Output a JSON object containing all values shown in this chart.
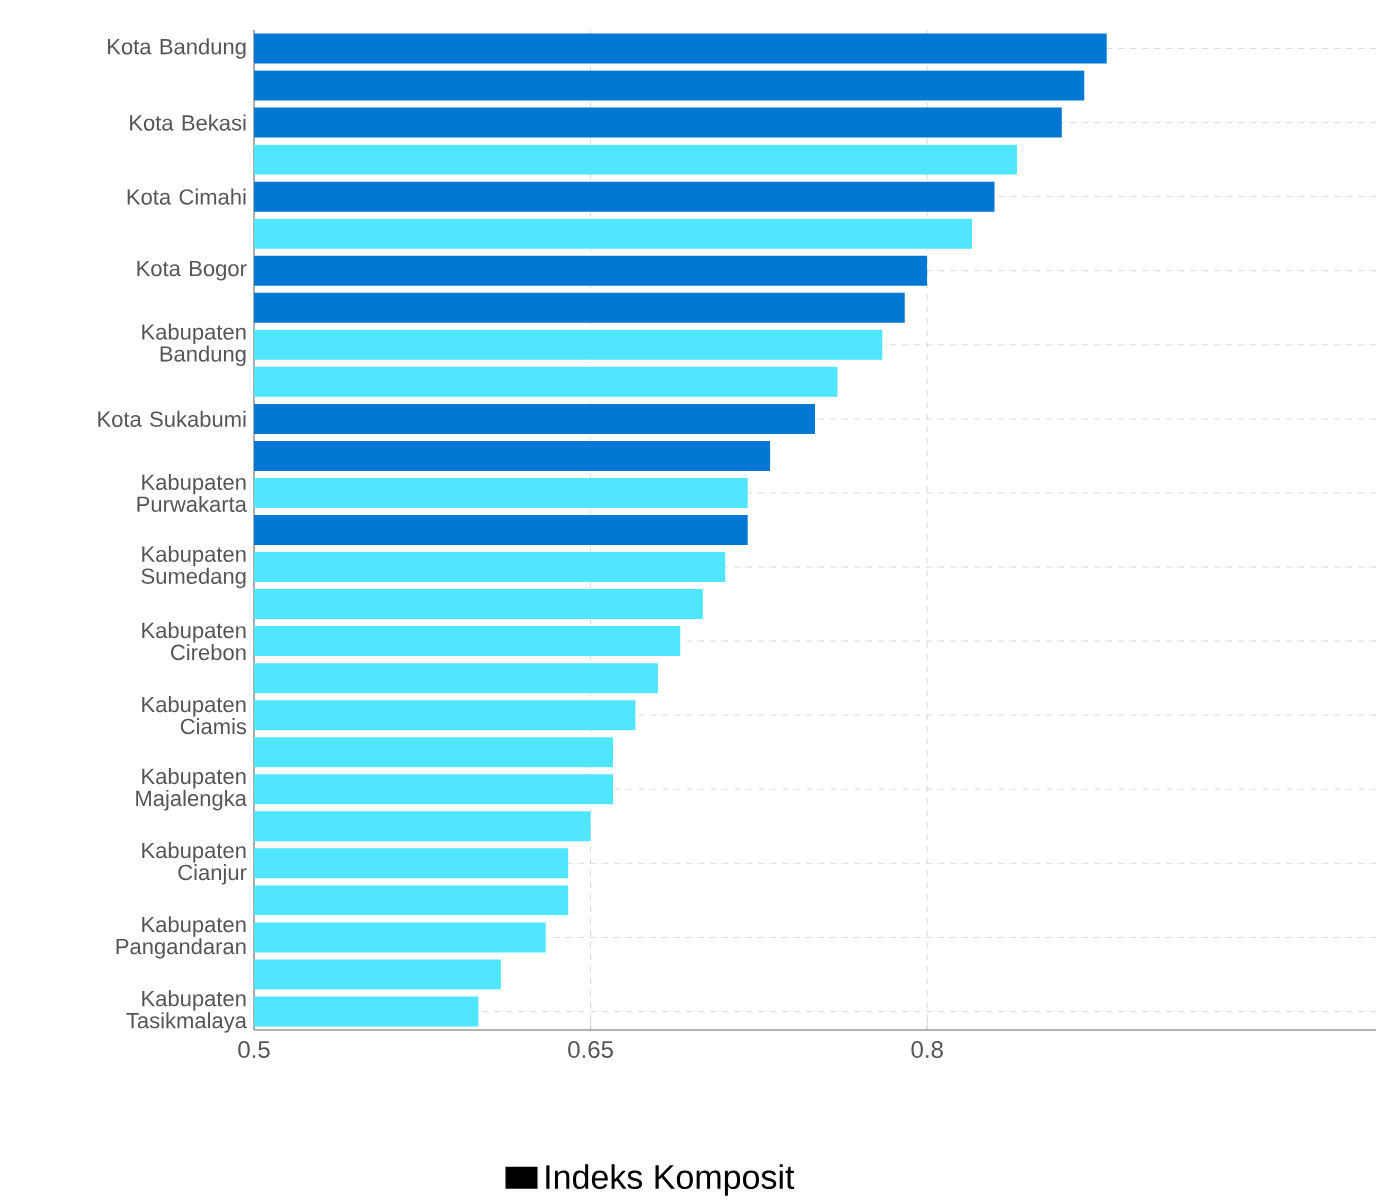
{
  "chart_data": {
    "type": "bar",
    "orientation": "horizontal",
    "categories": [
      "Kota Bandung",
      null,
      "Kota Bekasi",
      null,
      "Kota Cimahi",
      null,
      "Kota Bogor",
      null,
      "Kabupaten Bandung",
      null,
      "Kota Sukabumi",
      null,
      "Kabupaten Purwakarta",
      null,
      "Kabupaten Sumedang",
      null,
      "Kabupaten Cirebon",
      null,
      "Kabupaten Ciamis",
      null,
      "Kabupaten Majalengka",
      null,
      "Kabupaten Cianjur",
      null,
      "Kabupaten Pangandaran",
      null,
      "Kabupaten Tasikmalaya"
    ],
    "series": [
      {
        "name": "Indeks Komposit",
        "values": [
          0.88,
          0.87,
          0.86,
          0.84,
          0.83,
          0.82,
          0.8,
          0.79,
          0.78,
          0.76,
          0.75,
          0.73,
          0.72,
          0.72,
          0.71,
          0.7,
          0.69,
          0.68,
          0.67,
          0.66,
          0.66,
          0.65,
          0.64,
          0.64,
          0.63,
          0.61,
          0.6
        ],
        "colors": [
          "#0078d4",
          "#0078d4",
          "#0078d4",
          "#50e6ff",
          "#0078d4",
          "#50e6ff",
          "#0078d4",
          "#0078d4",
          "#50e6ff",
          "#50e6ff",
          "#0078d4",
          "#0078d4",
          "#50e6ff",
          "#0078d4",
          "#50e6ff",
          "#50e6ff",
          "#50e6ff",
          "#50e6ff",
          "#50e6ff",
          "#50e6ff",
          "#50e6ff",
          "#50e6ff",
          "#50e6ff",
          "#50e6ff",
          "#50e6ff",
          "#50e6ff",
          "#50e6ff"
        ]
      }
    ],
    "xlim": [
      0.5,
      1.0
    ],
    "xticks": [
      0.5,
      0.65,
      0.8
    ],
    "grid": true,
    "legend": "bottom"
  }
}
